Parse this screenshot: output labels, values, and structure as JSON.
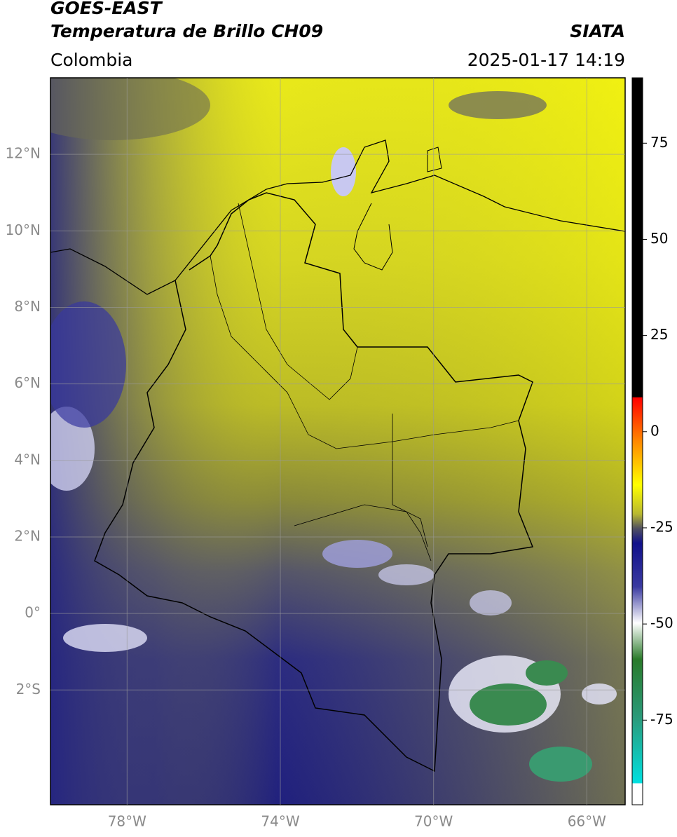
{
  "header": {
    "title": "GOES-EAST",
    "subtitle": "Temperatura de Brillo CH09",
    "source": "SIATA",
    "region": "Colombia",
    "timestamp": "2025-01-17 14:19"
  },
  "map": {
    "xlim": [
      -80,
      -65
    ],
    "ylim": [
      -5,
      14
    ],
    "xticks": [
      {
        "value": -78,
        "label": "78°W"
      },
      {
        "value": -74,
        "label": "74°W"
      },
      {
        "value": -70,
        "label": "70°W"
      },
      {
        "value": -66,
        "label": "66°W"
      }
    ],
    "yticks": [
      {
        "value": 12,
        "label": "12°N"
      },
      {
        "value": 10,
        "label": "10°N"
      },
      {
        "value": 8,
        "label": "8°N"
      },
      {
        "value": 6,
        "label": "6°N"
      },
      {
        "value": 4,
        "label": "4°N"
      },
      {
        "value": 2,
        "label": "2°N"
      },
      {
        "value": 0,
        "label": "0°"
      },
      {
        "value": -2,
        "label": "2°S"
      }
    ],
    "grid": true
  },
  "colorbar": {
    "lim": [
      -97,
      92
    ],
    "ticks": [
      75,
      50,
      25,
      0,
      -25,
      -50,
      -75
    ]
  }
}
